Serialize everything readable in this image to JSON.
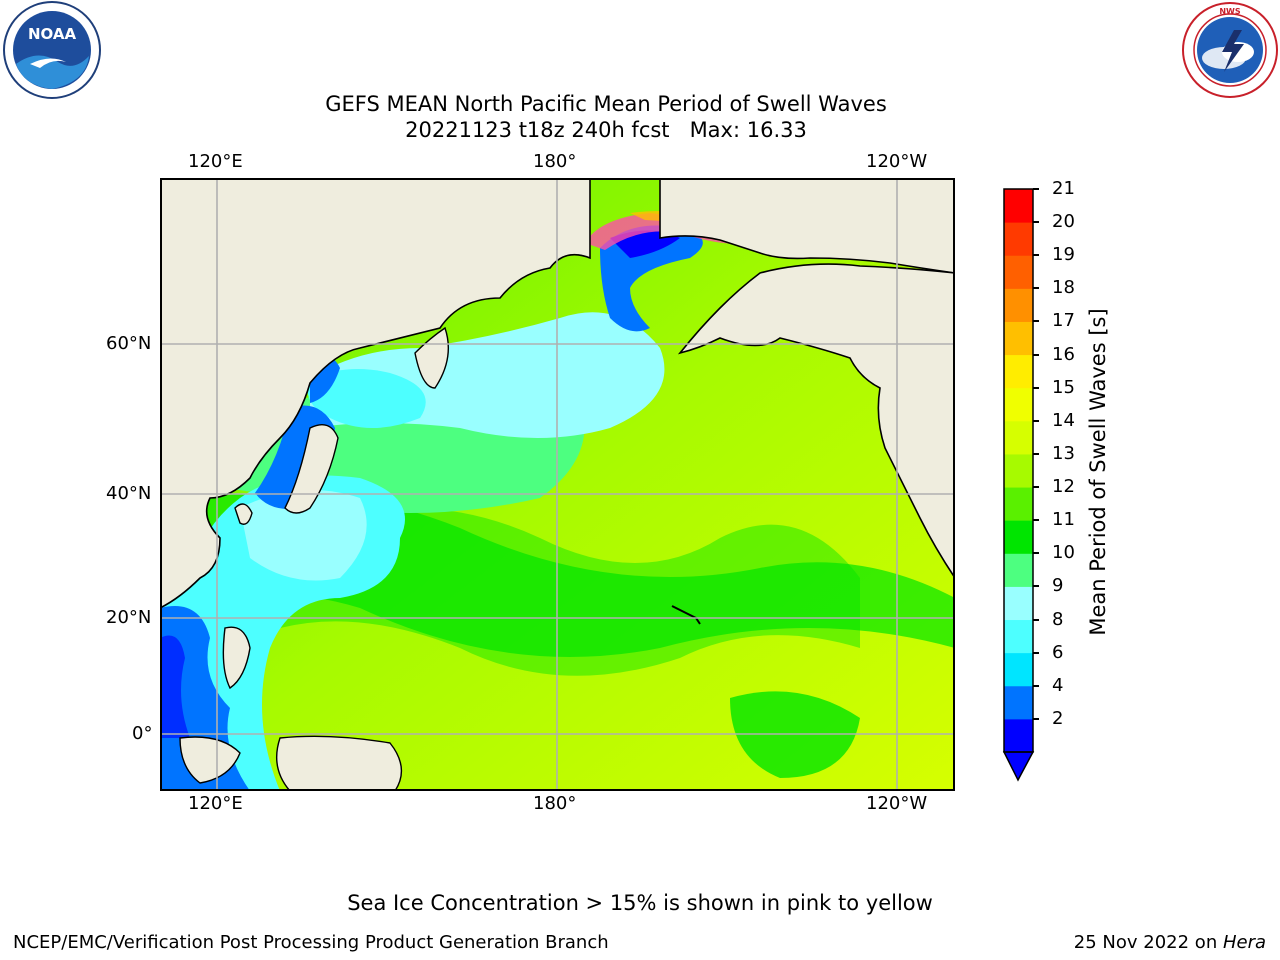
{
  "title": {
    "line1": "GEFS MEAN North Pacific Mean Period of Swell Waves",
    "line2": "20221123 t18z 240h fcst   Max: 16.33"
  },
  "logos": {
    "left": {
      "icon": "noaa-logo",
      "text": "NOAA"
    },
    "right": {
      "icon": "national-weather-service-logo",
      "text": "NATIONAL WEATHER SERVICE"
    }
  },
  "map": {
    "region": "North Pacific",
    "top_lon_labels": [
      "120°E",
      "180°",
      "120°W"
    ],
    "bottom_lon_labels": [
      "120°E",
      "180°",
      "120°W"
    ],
    "lat_labels": [
      "60°N",
      "40°N",
      "20°N",
      "0°"
    ],
    "colors": {
      "land": "#efedde",
      "grid": "#b0b0b0",
      "coast": "#000000"
    }
  },
  "colorbar": {
    "label": "Mean Period of Swell Waves [s]",
    "ticks": [
      "21",
      "20",
      "19",
      "18",
      "17",
      "16",
      "15",
      "14",
      "13",
      "12",
      "11",
      "10",
      "9",
      "8",
      "6",
      "4",
      "2"
    ],
    "colors": [
      "#0000ff",
      "#0074ff",
      "#00e5ff",
      "#4dffff",
      "#99ffff",
      "#4dff80",
      "#00e500",
      "#5af000",
      "#a7fa00",
      "#d6ff00",
      "#f0ff00",
      "#ffed00",
      "#ffbf00",
      "#ff9000",
      "#ff6000",
      "#ff3a00",
      "#ff0000"
    ]
  },
  "ice_note": "Sea Ice Concentration > 15% is shown in pink to yellow",
  "footer": {
    "left": "NCEP/EMC/Verification Post Processing Product Generation Branch",
    "date": "25 Nov 2022 on ",
    "machine": "Hera"
  }
}
